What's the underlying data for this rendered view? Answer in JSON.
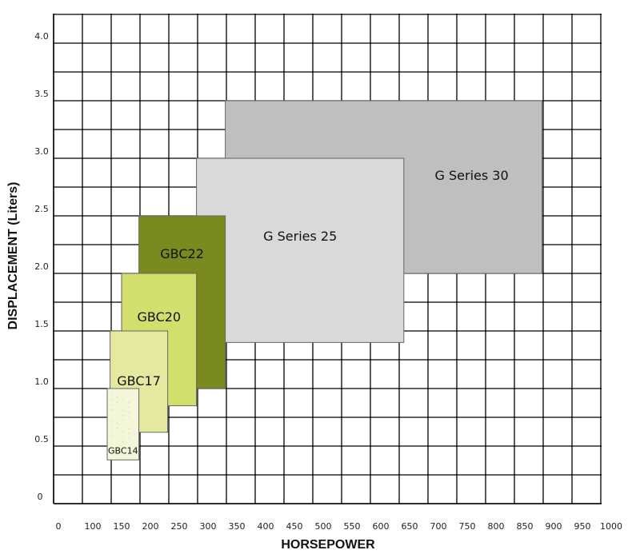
{
  "chart_data": {
    "type": "range-box",
    "title": "",
    "xlabel": "HORSEPOWER",
    "ylabel": "DISPLACEMENT (Liters)",
    "x_tick_labels": [
      0,
      100,
      150,
      200,
      250,
      300,
      350,
      400,
      450,
      500,
      550,
      600,
      650,
      700,
      750,
      800,
      850,
      900,
      950,
      1000
    ],
    "y_tick_labels": [
      "0",
      "0.5",
      "1.0",
      "1.5",
      "2.0",
      "2.5",
      "3.0",
      "3.5",
      "4.0"
    ],
    "y_ticks": [
      0,
      0.5,
      1.0,
      1.5,
      2.0,
      2.5,
      3.0,
      3.5,
      4.0
    ],
    "ylim": [
      0,
      4.25
    ],
    "grid": true,
    "series": [
      {
        "name": "G Series 30",
        "hp": [
          330,
          880
        ],
        "liters": [
          2.0,
          3.5
        ],
        "color": "#bfbfbf"
      },
      {
        "name": "G Series 25",
        "hp": [
          280,
          640
        ],
        "liters": [
          1.4,
          3.0
        ],
        "color": "#d9d9d9"
      },
      {
        "name": "GBC22",
        "hp": [
          180,
          330
        ],
        "liters": [
          1.0,
          2.5
        ],
        "color": "#7b8a1f"
      },
      {
        "name": "GBC20",
        "hp": [
          150,
          280
        ],
        "liters": [
          0.85,
          2.0
        ],
        "color": "#d3df6c"
      },
      {
        "name": "GBC17",
        "hp": [
          130,
          230
        ],
        "liters": [
          0.62,
          1.5
        ],
        "color": "#e4e99f"
      },
      {
        "name": "GBC14",
        "hp": [
          125,
          180
        ],
        "liters": [
          0.38,
          1.0
        ],
        "color": "#f3f6d8"
      }
    ]
  }
}
